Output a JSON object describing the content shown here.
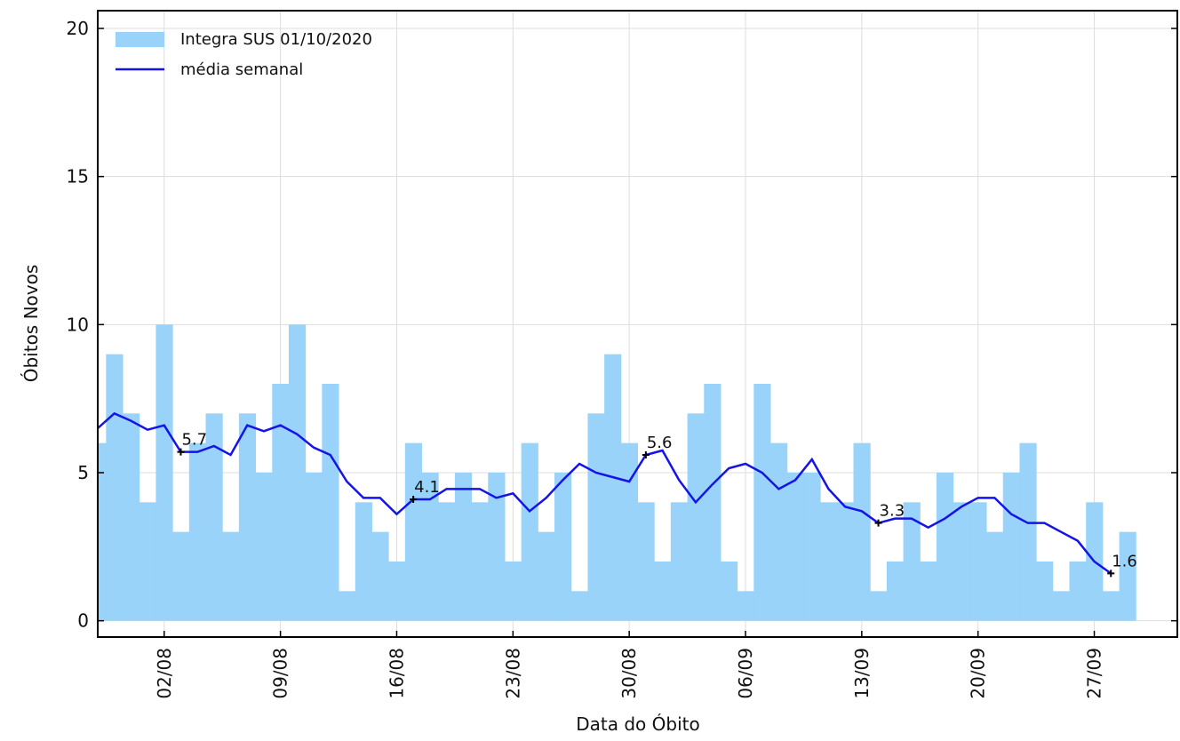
{
  "chart_data": {
    "type": "bar",
    "x_label": "Data do Óbito",
    "y_label": "Óbitos Novos",
    "x": [
      "29/07",
      "30/07",
      "31/07",
      "01/08",
      "02/08",
      "03/08",
      "04/08",
      "05/08",
      "06/08",
      "07/08",
      "08/08",
      "09/08",
      "10/08",
      "11/08",
      "12/08",
      "13/08",
      "14/08",
      "15/08",
      "16/08",
      "17/08",
      "18/08",
      "19/08",
      "20/08",
      "21/08",
      "22/08",
      "23/08",
      "24/08",
      "25/08",
      "26/08",
      "27/08",
      "28/08",
      "29/08",
      "30/08",
      "31/08",
      "01/09",
      "02/09",
      "03/09",
      "04/09",
      "05/09",
      "06/09",
      "07/09",
      "08/09",
      "09/09",
      "10/09",
      "11/09",
      "12/09",
      "13/09",
      "14/09",
      "15/09",
      "16/09",
      "17/09",
      "18/09",
      "19/09",
      "20/09",
      "21/09",
      "22/09",
      "23/09",
      "24/09",
      "25/09",
      "26/09",
      "27/09",
      "28/09",
      "29/09"
    ],
    "series": [
      {
        "name": "Integra SUS 01/10/2020",
        "type": "bar",
        "color": "#99d3f9",
        "values": [
          6,
          9,
          7,
          4,
          10,
          3,
          6,
          7,
          3,
          7,
          5,
          8,
          10,
          5,
          8,
          1,
          4,
          3,
          2,
          6,
          5,
          4,
          5,
          4,
          5,
          2,
          6,
          3,
          5,
          1,
          7,
          9,
          6,
          4,
          2,
          4,
          7,
          8,
          2,
          1,
          8,
          6,
          5,
          5,
          4,
          4,
          6,
          1,
          2,
          4,
          2,
          5,
          4,
          4,
          3,
          5,
          6,
          2,
          1,
          2,
          4,
          1,
          3
        ]
      },
      {
        "name": "média  semanal",
        "type": "line",
        "color": "#1414e6",
        "values": [
          6.5,
          7.0,
          6.75,
          6.45,
          6.6,
          5.7,
          5.7,
          5.9,
          5.6,
          6.6,
          6.4,
          6.6,
          6.3,
          5.85,
          5.6,
          4.7,
          4.15,
          4.15,
          3.6,
          4.1,
          4.1,
          4.45,
          4.45,
          4.45,
          4.15,
          4.3,
          3.7,
          4.15,
          4.75,
          5.3,
          5.0,
          4.85,
          4.7,
          5.6,
          5.75,
          4.75,
          4.0,
          4.6,
          5.15,
          5.3,
          5.0,
          4.45,
          4.75,
          5.45,
          4.45,
          3.85,
          3.7,
          3.3,
          3.45,
          3.45,
          3.15,
          3.45,
          3.85,
          4.15,
          4.15,
          3.6,
          3.3,
          3.3,
          3.0,
          2.7,
          2.0,
          1.6,
          null
        ]
      }
    ],
    "annotations": [
      {
        "x": "03/08",
        "value": 5.7
      },
      {
        "x": "17/08",
        "value": 4.1
      },
      {
        "x": "31/08",
        "value": 5.6
      },
      {
        "x": "14/09",
        "value": 3.3
      },
      {
        "x": "28/09",
        "value": 1.6
      }
    ],
    "xlim": [
      "29/07",
      "02/10"
    ],
    "xticks": [
      "02/08",
      "09/08",
      "16/08",
      "23/08",
      "30/08",
      "06/09",
      "13/09",
      "20/09",
      "27/09"
    ],
    "ylim": [
      -0.55,
      20.6
    ],
    "yticks": [
      0,
      5,
      10,
      15,
      20
    ],
    "grid": true,
    "legend": "upper left"
  }
}
